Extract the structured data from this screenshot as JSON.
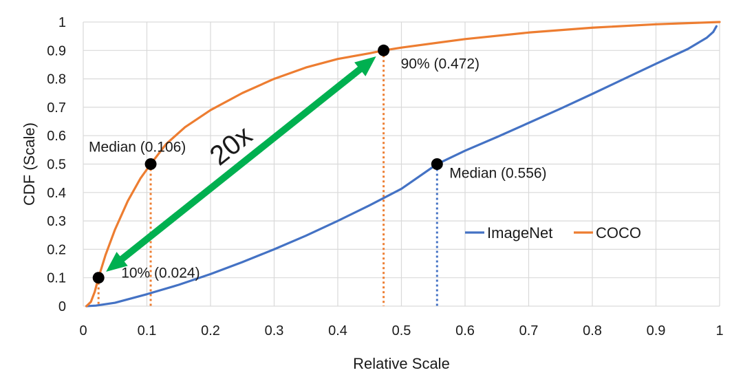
{
  "chart_data": {
    "type": "line",
    "title": "",
    "xlabel": "Relative Scale",
    "ylabel": "CDF (Scale)",
    "xlim": [
      0,
      1
    ],
    "ylim": [
      0,
      1
    ],
    "x_ticks": [
      "0",
      "0.1",
      "0.2",
      "0.3",
      "0.4",
      "0.5",
      "0.6",
      "0.7",
      "0.8",
      "0.9",
      "1"
    ],
    "y_ticks": [
      "0",
      "0.1",
      "0.2",
      "0.3",
      "0.4",
      "0.5",
      "0.6",
      "0.7",
      "0.8",
      "0.9",
      "1"
    ],
    "grid": true,
    "legend_position": "right-middle",
    "series": [
      {
        "name": "ImageNet",
        "color": "#4472C4",
        "x": [
          0.005,
          0.02,
          0.05,
          0.1,
          0.15,
          0.2,
          0.25,
          0.3,
          0.35,
          0.4,
          0.45,
          0.5,
          0.556,
          0.6,
          0.65,
          0.7,
          0.75,
          0.8,
          0.85,
          0.9,
          0.95,
          0.98,
          0.99,
          0.995
        ],
        "y": [
          0,
          0.002,
          0.012,
          0.042,
          0.075,
          0.113,
          0.155,
          0.2,
          0.248,
          0.3,
          0.355,
          0.413,
          0.5,
          0.547,
          0.595,
          0.645,
          0.695,
          0.747,
          0.8,
          0.853,
          0.905,
          0.945,
          0.965,
          0.985
        ]
      },
      {
        "name": "COCO",
        "color": "#ED7D31",
        "x": [
          0.005,
          0.012,
          0.018,
          0.024,
          0.035,
          0.05,
          0.07,
          0.09,
          0.106,
          0.13,
          0.16,
          0.2,
          0.25,
          0.3,
          0.35,
          0.4,
          0.45,
          0.472,
          0.5,
          0.6,
          0.7,
          0.8,
          0.9,
          1.0
        ],
        "y": [
          0,
          0.015,
          0.05,
          0.1,
          0.18,
          0.27,
          0.37,
          0.45,
          0.5,
          0.57,
          0.63,
          0.69,
          0.75,
          0.8,
          0.84,
          0.87,
          0.89,
          0.9,
          0.91,
          0.94,
          0.963,
          0.98,
          0.992,
          1.0
        ]
      }
    ],
    "markers": [
      {
        "x": 0.024,
        "y": 0.1,
        "label": "10% (0.024)",
        "drop_color": "#ED7D31"
      },
      {
        "x": 0.106,
        "y": 0.5,
        "label": "Median (0.106)",
        "drop_color": "#ED7D31"
      },
      {
        "x": 0.472,
        "y": 0.9,
        "label": "90% (0.472)",
        "drop_color": "#ED7D31"
      },
      {
        "x": 0.556,
        "y": 0.5,
        "label": "Median (0.556)",
        "drop_color": "#4472C4"
      }
    ],
    "ratio_annotation": {
      "text": "20x",
      "color": "#00B050"
    }
  }
}
